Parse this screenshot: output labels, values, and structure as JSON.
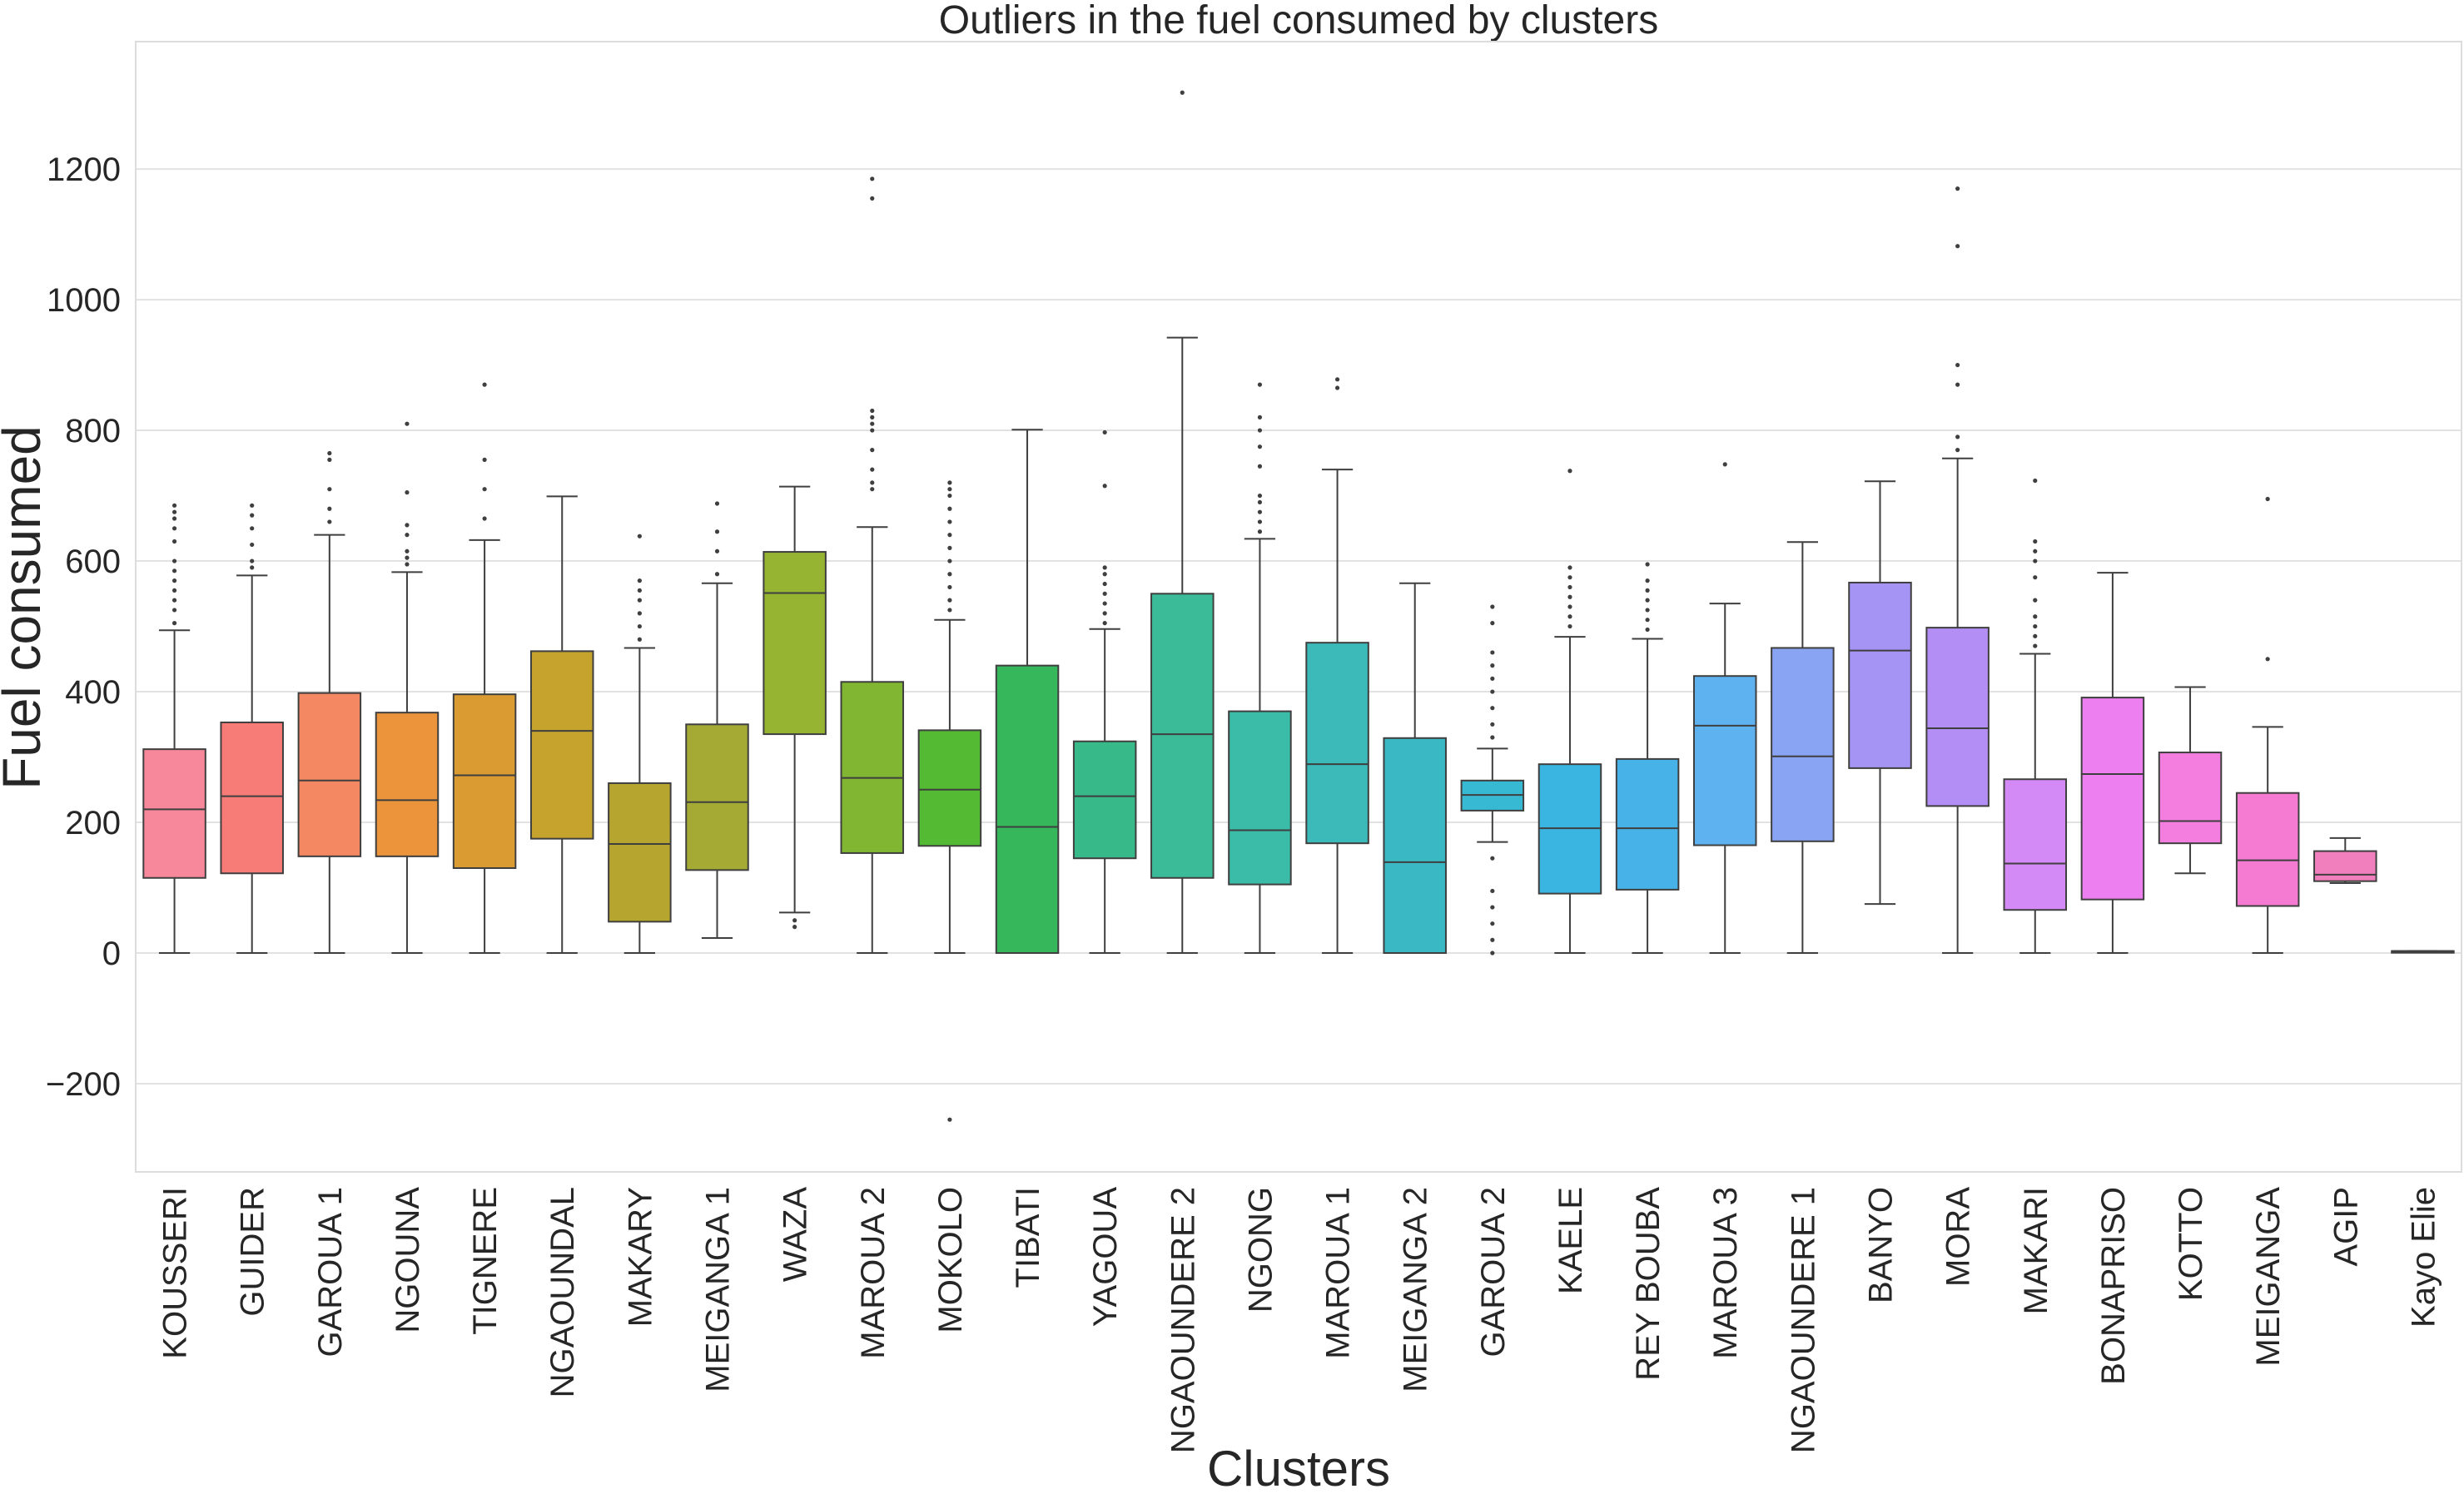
{
  "chart_data": {
    "type": "box",
    "title": "Outliers in the fuel consumed by clusters",
    "xlabel": "Clusters",
    "ylabel": "Fuel consumed",
    "ylim": [
      -335,
      1395
    ],
    "yticks": [
      -200,
      0,
      200,
      400,
      600,
      800,
      1000,
      1200
    ],
    "grid": true,
    "categories": [
      "KOUSSERI",
      "GUIDER",
      "GAROUA 1",
      "NGOUNA",
      "TIGNERE",
      "NGAOUNDAL",
      "MAKARY",
      "MEIGANGA 1",
      "WAZA",
      "MAROUA 2",
      "MOKOLO",
      "TIBATI",
      "YAGOUA",
      "NGAOUNDERE 2",
      "NGONG",
      "MAROUA 1",
      "MEIGANGA 2",
      "GAROUA 2",
      "KAELE",
      "REY BOUBA",
      "MAROUA 3",
      "NGAOUNDERE 1",
      "BANYO",
      "MORA",
      "MAKARI",
      "BONAPRISO",
      "KOTTO",
      "MEIGANGA",
      "AGIP",
      "Kayo Elie"
    ],
    "colors": [
      "#f7879a",
      "#f77c78",
      "#f48862",
      "#ec943b",
      "#d99b32",
      "#c6a32d",
      "#b6a62f",
      "#a5aa34",
      "#96b431",
      "#80b631",
      "#54ba33",
      "#36b75c",
      "#38b98a",
      "#3cbb98",
      "#3bbca8",
      "#3cbaba",
      "#3ab8c4",
      "#37b9d4",
      "#3ab5e1",
      "#46b2e8",
      "#5fb2f0",
      "#8aa4f4",
      "#a594f4",
      "#b38ff5",
      "#d48af6",
      "#ee7ff0",
      "#f47ee0",
      "#f57ad2",
      "#f27fbd",
      "#f481ac"
    ],
    "boxes": [
      {
        "whislo": 0,
        "q1": 115,
        "med": 220,
        "q3": 312,
        "whishi": 494,
        "fliers": [
          505,
          525,
          540,
          555,
          570,
          585,
          600,
          630,
          650,
          665,
          675,
          685
        ]
      },
      {
        "whislo": 0,
        "q1": 122,
        "med": 240,
        "q3": 353,
        "whishi": 578,
        "fliers": [
          590,
          600,
          625,
          650,
          670,
          685
        ]
      },
      {
        "whislo": 0,
        "q1": 148,
        "med": 264,
        "q3": 398,
        "whishi": 640,
        "fliers": [
          660,
          680,
          710,
          755,
          765
        ]
      },
      {
        "whislo": 0,
        "q1": 148,
        "med": 234,
        "q3": 368,
        "whishi": 583,
        "fliers": [
          595,
          605,
          615,
          640,
          655,
          705,
          810
        ]
      },
      {
        "whislo": 0,
        "q1": 130,
        "med": 272,
        "q3": 396,
        "whishi": 632,
        "fliers": [
          665,
          710,
          755,
          870
        ]
      },
      {
        "whislo": 0,
        "q1": 175,
        "med": 340,
        "q3": 462,
        "whishi": 699,
        "fliers": []
      },
      {
        "whislo": 0,
        "q1": 48,
        "med": 167,
        "q3": 260,
        "whishi": 467,
        "fliers": [
          480,
          500,
          520,
          540,
          555,
          570,
          638
        ]
      },
      {
        "whislo": 23,
        "q1": 127,
        "med": 231,
        "q3": 350,
        "whishi": 566,
        "fliers": [
          580,
          615,
          645,
          688
        ]
      },
      {
        "whislo": 62,
        "q1": 335,
        "med": 551,
        "q3": 614,
        "whishi": 714,
        "fliers": [
          40,
          50
        ]
      },
      {
        "whislo": 0,
        "q1": 153,
        "med": 268,
        "q3": 415,
        "whishi": 652,
        "fliers": [
          710,
          720,
          740,
          770,
          800,
          810,
          820,
          830,
          1155,
          1185
        ]
      },
      {
        "whislo": 0,
        "q1": 164,
        "med": 250,
        "q3": 341,
        "whishi": 510,
        "fliers": [
          -255,
          525,
          540,
          560,
          580,
          600,
          620,
          640,
          660,
          680,
          700,
          710,
          720
        ]
      },
      {
        "whislo": 0,
        "q1": 0,
        "med": 193,
        "q3": 440,
        "whishi": 801,
        "fliers": []
      },
      {
        "whislo": 0,
        "q1": 145,
        "med": 240,
        "q3": 324,
        "whishi": 496,
        "fliers": [
          505,
          520,
          535,
          550,
          565,
          580,
          590,
          715,
          797
        ]
      },
      {
        "whislo": 0,
        "q1": 115,
        "med": 335,
        "q3": 550,
        "whishi": 942,
        "fliers": [
          1317
        ]
      },
      {
        "whislo": 0,
        "q1": 105,
        "med": 188,
        "q3": 370,
        "whishi": 634,
        "fliers": [
          645,
          660,
          675,
          690,
          700,
          745,
          775,
          800,
          820,
          870
        ]
      },
      {
        "whislo": 0,
        "q1": 168,
        "med": 289,
        "q3": 475,
        "whishi": 740,
        "fliers": [
          865,
          878
        ]
      },
      {
        "whislo": 0,
        "q1": 0,
        "med": 139,
        "q3": 329,
        "whishi": 566,
        "fliers": []
      },
      {
        "whislo": 170,
        "q1": 218,
        "med": 242,
        "q3": 264,
        "whishi": 313,
        "fliers": [
          0,
          20,
          45,
          70,
          95,
          145,
          330,
          350,
          375,
          400,
          420,
          440,
          460,
          505,
          530
        ]
      },
      {
        "whislo": 0,
        "q1": 91,
        "med": 191,
        "q3": 289,
        "whishi": 484,
        "fliers": [
          500,
          515,
          530,
          545,
          560,
          575,
          590,
          738
        ]
      },
      {
        "whislo": 0,
        "q1": 97,
        "med": 191,
        "q3": 297,
        "whishi": 481,
        "fliers": [
          495,
          510,
          525,
          540,
          555,
          570,
          595
        ]
      },
      {
        "whislo": 0,
        "q1": 165,
        "med": 348,
        "q3": 424,
        "whishi": 535,
        "fliers": [
          748
        ]
      },
      {
        "whislo": 0,
        "q1": 171,
        "med": 301,
        "q3": 467,
        "whishi": 629,
        "fliers": []
      },
      {
        "whislo": 75,
        "q1": 283,
        "med": 463,
        "q3": 567,
        "whishi": 722,
        "fliers": []
      },
      {
        "whislo": 0,
        "q1": 225,
        "med": 344,
        "q3": 498,
        "whishi": 757,
        "fliers": [
          770,
          790,
          870,
          900,
          1082,
          1170
        ]
      },
      {
        "whislo": 0,
        "q1": 66,
        "med": 137,
        "q3": 266,
        "whishi": 458,
        "fliers": [
          470,
          485,
          500,
          515,
          540,
          575,
          600,
          615,
          630,
          723
        ]
      },
      {
        "whislo": 0,
        "q1": 82,
        "med": 274,
        "q3": 391,
        "whishi": 582,
        "fliers": []
      },
      {
        "whislo": 122,
        "q1": 168,
        "med": 202,
        "q3": 307,
        "whishi": 407,
        "fliers": []
      },
      {
        "whislo": 0,
        "q1": 72,
        "med": 142,
        "q3": 245,
        "whishi": 346,
        "fliers": [
          450,
          695
        ]
      },
      {
        "whislo": 107,
        "q1": 110,
        "med": 120,
        "q3": 156,
        "whishi": 176,
        "fliers": []
      },
      {
        "whislo": 3,
        "q1": 3,
        "med": 3,
        "q3": 3,
        "whishi": 3,
        "fliers": []
      }
    ]
  }
}
